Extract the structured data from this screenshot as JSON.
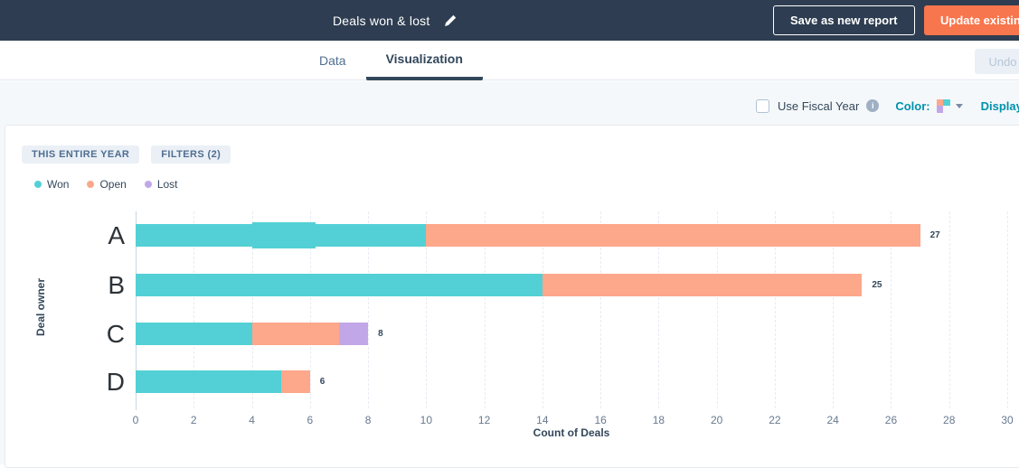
{
  "topbar": {
    "title": "Deals won & lost",
    "save_button": "Save as new report",
    "update_button": "Update existing",
    "bar_color": "#2e3d51",
    "update_button_color": "#f8764d"
  },
  "tabs": {
    "data": "Data",
    "visualization": "Visualization",
    "active": "Visualization",
    "undo_button": "Undo"
  },
  "viz_toolbar": {
    "fiscal_label": "Use Fiscal Year",
    "fiscal_checked": false,
    "color_label": "Color:",
    "swatch_colors": [
      "#fda78b",
      "#53d0d5",
      "#c1a7e8",
      "#f5f8fa"
    ],
    "display_options_label": "Display options"
  },
  "filters": {
    "time_range_chip": "THIS ENTIRE YEAR",
    "filters_chip": "FILTERS (2)"
  },
  "legend": [
    {
      "label": "Won",
      "color": "#53d0d5"
    },
    {
      "label": "Open",
      "color": "#fda78b"
    },
    {
      "label": "Lost",
      "color": "#c1a7e8"
    }
  ],
  "chart_data": {
    "type": "bar",
    "orientation": "horizontal",
    "stacked": true,
    "title": "Deals won & lost",
    "categories": [
      "A",
      "B",
      "C",
      "D"
    ],
    "series": [
      {
        "name": "Won",
        "color": "#53d0d5",
        "values": [
          10,
          14,
          4,
          5
        ]
      },
      {
        "name": "Open",
        "color": "#fda78b",
        "values": [
          17,
          11,
          3,
          1
        ]
      },
      {
        "name": "Lost",
        "color": "#c1a7e8",
        "values": [
          0,
          0,
          1,
          0
        ]
      }
    ],
    "totals": [
      27,
      25,
      8,
      6
    ],
    "xlabel": "Count of Deals",
    "ylabel": "Deal owner",
    "xlim": [
      0,
      30
    ],
    "xticks": [
      0,
      2,
      4,
      6,
      8,
      10,
      12,
      14,
      16,
      18,
      20,
      22,
      24,
      26,
      28,
      30
    ],
    "grid": true,
    "grid_style": "dashed",
    "legend_position": "top-left",
    "highlight": {
      "category": "A",
      "x0": 4,
      "x1": 6.2
    }
  }
}
